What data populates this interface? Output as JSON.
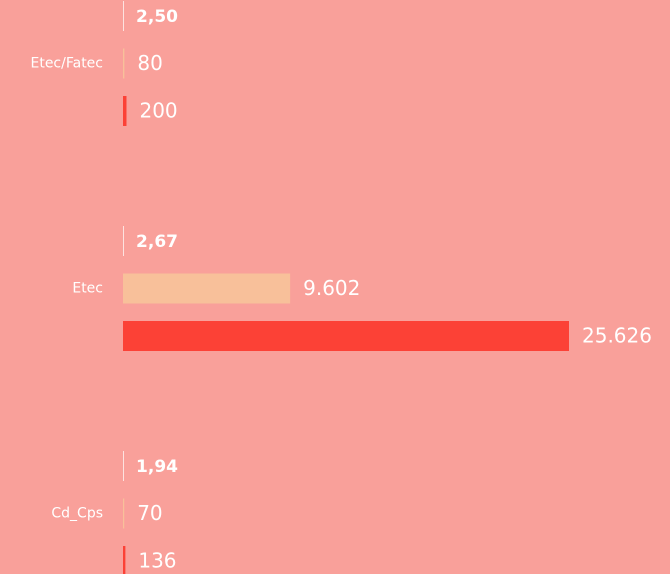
{
  "chart_data": {
    "type": "bar",
    "orientation": "horizontal",
    "categories": [
      "Etec/Fatec",
      "Etec",
      "Cd_Cps"
    ],
    "series": [
      {
        "color": "#fde3e0",
        "values": [
          2.5,
          2.67,
          1.94
        ],
        "value_labels": [
          "2,50",
          "2,67",
          "1,94"
        ]
      },
      {
        "color": "#f8c09a",
        "values": [
          80,
          9602,
          70
        ],
        "value_labels": [
          "80",
          "9.602",
          "70"
        ]
      },
      {
        "color": "#fc4136",
        "values": [
          200,
          25626,
          136
        ],
        "value_labels": [
          "200",
          "25.626",
          "136"
        ]
      }
    ],
    "xlim": [
      0,
      25626
    ]
  }
}
